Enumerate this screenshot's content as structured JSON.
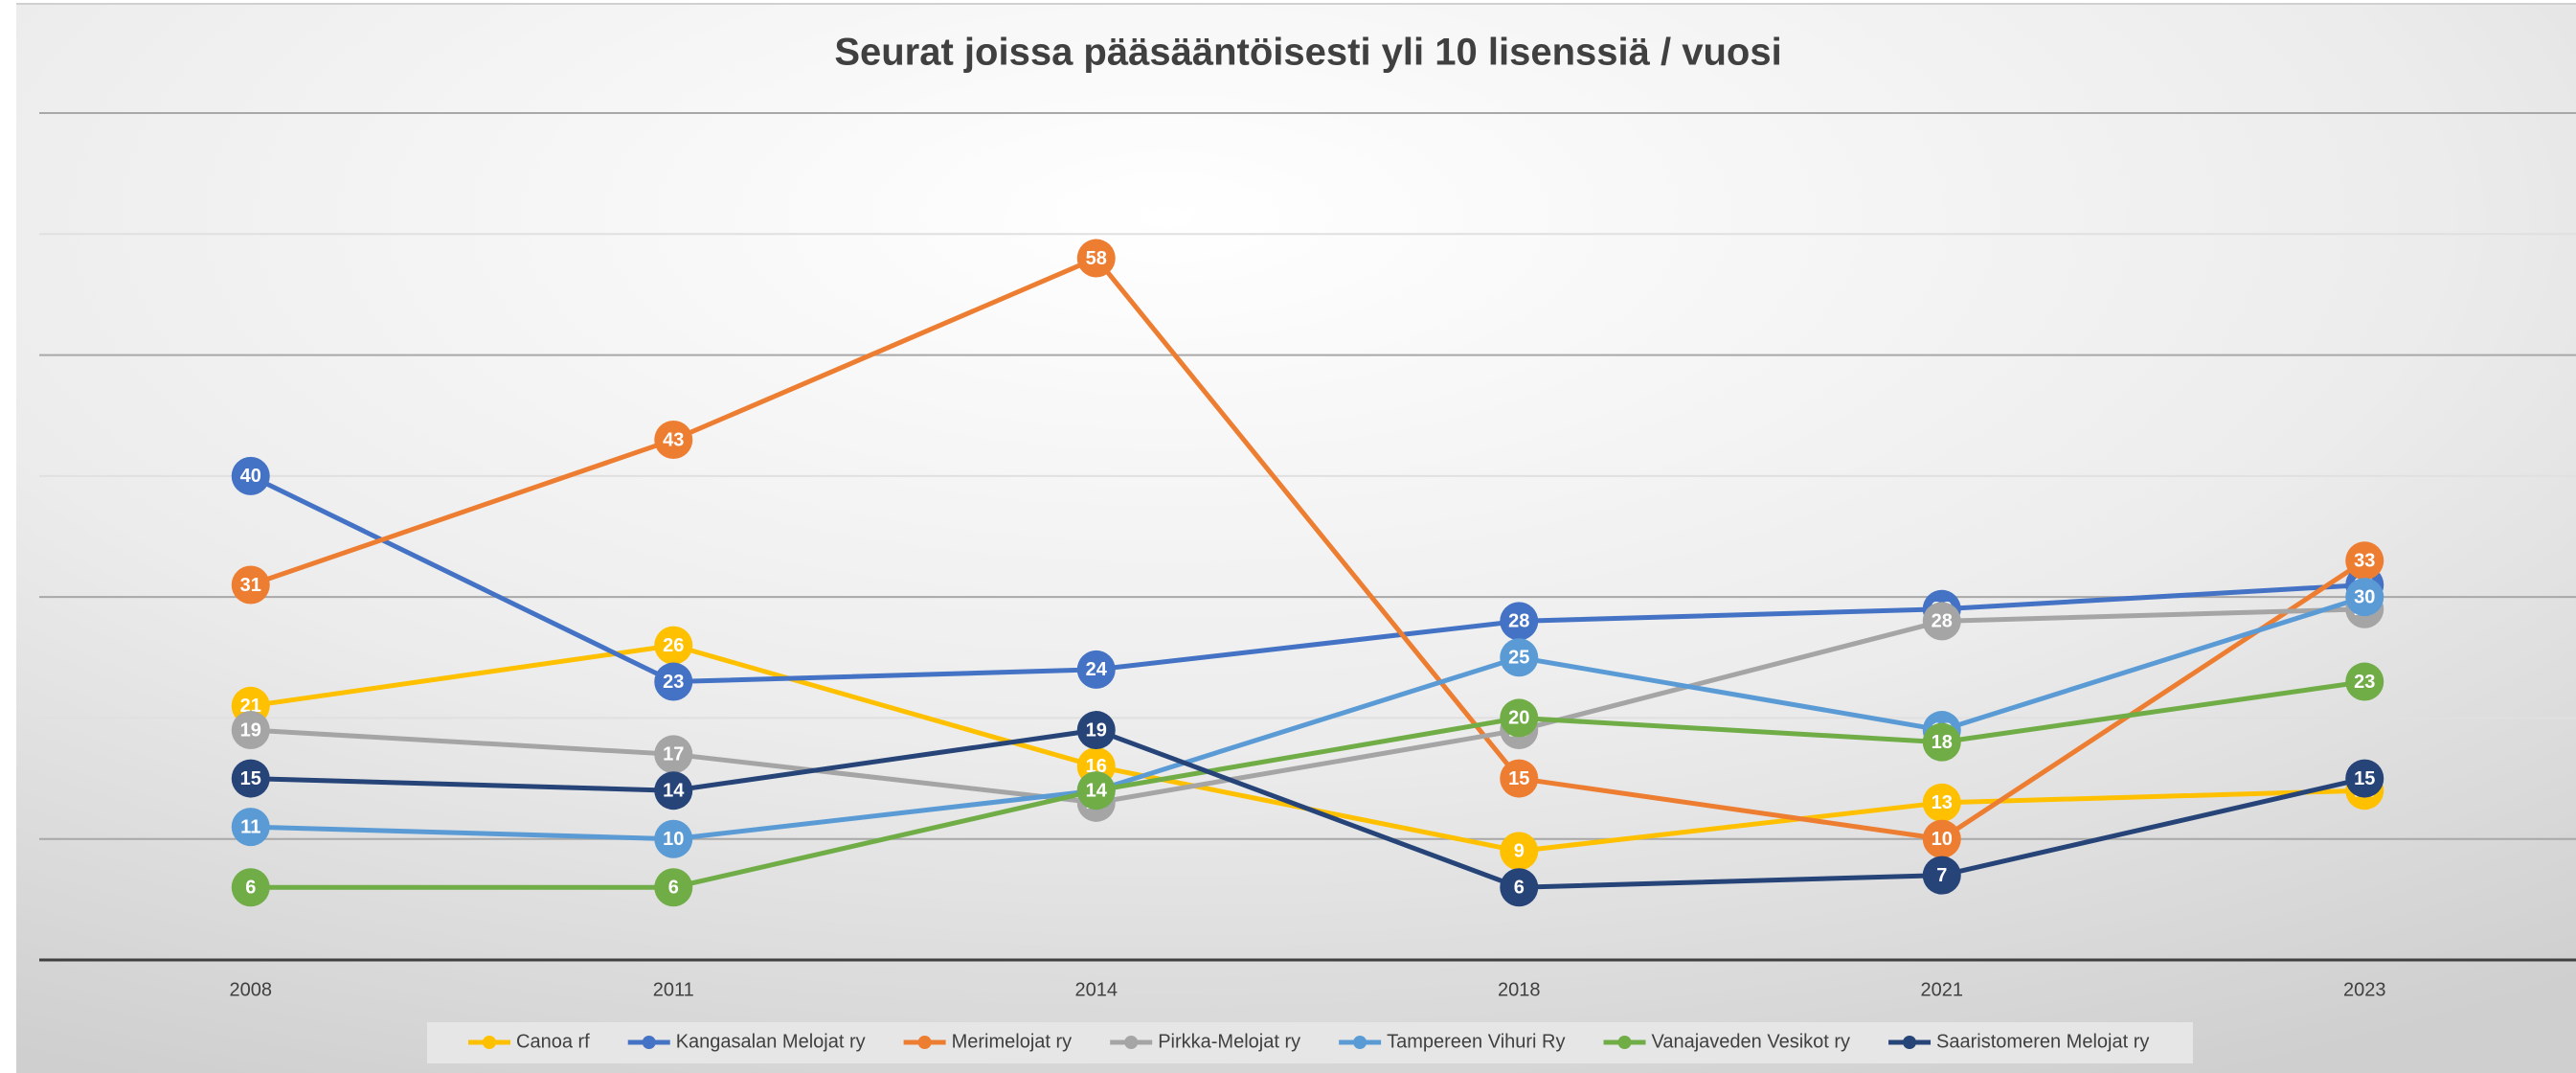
{
  "chart_data": {
    "type": "line",
    "title": "Seurat joissa pääsääntöisesti yli 10 lisenssiä / vuosi",
    "categories": [
      "2008",
      "2011",
      "2014",
      "2018",
      "2021",
      "2023"
    ],
    "series": [
      {
        "name": "Canoa rf",
        "color": "#ffc000",
        "values": [
          21,
          26,
          16,
          9,
          13,
          14
        ]
      },
      {
        "name": "Kangasalan Melojat ry",
        "color": "#4472c4",
        "values": [
          40,
          23,
          24,
          28,
          29,
          31
        ]
      },
      {
        "name": "Merimelojat ry",
        "color": "#ed7d31",
        "values": [
          31,
          43,
          58,
          15,
          10,
          33
        ]
      },
      {
        "name": "Pirkka-Melojat ry",
        "color": "#a5a5a5",
        "values": [
          19,
          17,
          13,
          19,
          28,
          29
        ]
      },
      {
        "name": "Tampereen Vihuri Ry",
        "color": "#5b9bd5",
        "values": [
          11,
          10,
          14,
          25,
          19,
          30
        ]
      },
      {
        "name": "Vanajaveden Vesikot ry",
        "color": "#70ad47",
        "values": [
          6,
          6,
          14,
          20,
          18,
          23
        ]
      },
      {
        "name": "Saaristomeren Melojat ry",
        "color": "#264478",
        "values": [
          15,
          14,
          19,
          6,
          7,
          15
        ]
      }
    ],
    "ylim": [
      0,
      70
    ],
    "yticks": [
      0,
      10,
      20,
      30,
      40,
      50,
      60,
      70
    ],
    "grid": true,
    "legend": "bottom"
  }
}
